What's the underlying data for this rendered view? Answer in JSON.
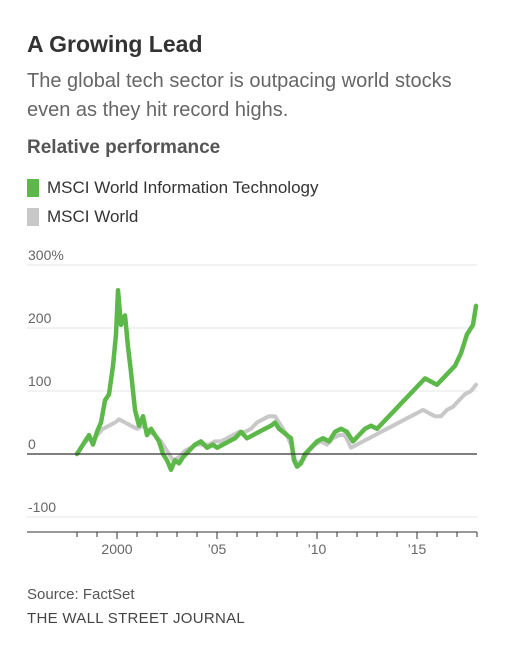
{
  "header": {
    "title": "A Growing Lead",
    "subtitle": "The global tech sector is outpacing world stocks even as they hit record highs.",
    "section_label": "Relative performance"
  },
  "footer": {
    "source": "Source: FactSet",
    "publisher": "THE WALL STREET JOURNAL"
  },
  "colors": {
    "tech": "#5cb848",
    "world": "#c8c8c8",
    "zero_line": "#333333",
    "grid": "#e6e6e6",
    "axis": "#333333"
  },
  "chart_data": {
    "type": "line",
    "title": "A Growing Lead",
    "subtitle": "The global tech sector is outpacing world stocks even as they hit record highs.",
    "ylabel": "Relative performance",
    "xlabel": "",
    "ylim": [
      -100,
      300
    ],
    "xlim": [
      1998.0,
      2018.0
    ],
    "grid": true,
    "legend_position": "top-left",
    "yticks": [
      {
        "value": 300,
        "label": "300%"
      },
      {
        "value": 200,
        "label": "200"
      },
      {
        "value": 100,
        "label": "100"
      },
      {
        "value": 0,
        "label": "0"
      },
      {
        "value": -100,
        "label": "-100"
      }
    ],
    "xticks": [
      {
        "value": 2000,
        "label": "2000"
      },
      {
        "value": 2005,
        "label": "’05"
      },
      {
        "value": 2010,
        "label": "’10"
      },
      {
        "value": 2015,
        "label": "’15"
      }
    ],
    "series": [
      {
        "name": "MSCI World Information Technology",
        "color": "#5cb848",
        "points": [
          [
            1998.0,
            0
          ],
          [
            1998.3,
            15
          ],
          [
            1998.6,
            30
          ],
          [
            1998.8,
            15
          ],
          [
            1999.0,
            35
          ],
          [
            1999.2,
            50
          ],
          [
            1999.4,
            85
          ],
          [
            1999.6,
            95
          ],
          [
            1999.8,
            140
          ],
          [
            1999.95,
            190
          ],
          [
            2000.05,
            260
          ],
          [
            2000.2,
            205
          ],
          [
            2000.4,
            220
          ],
          [
            2000.55,
            170
          ],
          [
            2000.7,
            130
          ],
          [
            2000.9,
            70
          ],
          [
            2001.1,
            45
          ],
          [
            2001.3,
            60
          ],
          [
            2001.5,
            30
          ],
          [
            2001.7,
            40
          ],
          [
            2001.9,
            30
          ],
          [
            2002.1,
            20
          ],
          [
            2002.3,
            0
          ],
          [
            2002.5,
            -10
          ],
          [
            2002.7,
            -25
          ],
          [
            2002.9,
            -10
          ],
          [
            2003.1,
            -15
          ],
          [
            2003.3,
            -5
          ],
          [
            2003.6,
            5
          ],
          [
            2003.9,
            15
          ],
          [
            2004.2,
            20
          ],
          [
            2004.5,
            10
          ],
          [
            2004.8,
            15
          ],
          [
            2005.0,
            10
          ],
          [
            2005.3,
            15
          ],
          [
            2005.6,
            20
          ],
          [
            2005.9,
            25
          ],
          [
            2006.2,
            35
          ],
          [
            2006.5,
            25
          ],
          [
            2006.8,
            30
          ],
          [
            2007.1,
            35
          ],
          [
            2007.4,
            40
          ],
          [
            2007.7,
            45
          ],
          [
            2007.9,
            50
          ],
          [
            2008.1,
            40
          ],
          [
            2008.3,
            35
          ],
          [
            2008.5,
            30
          ],
          [
            2008.7,
            25
          ],
          [
            2008.85,
            -10
          ],
          [
            2009.0,
            -20
          ],
          [
            2009.2,
            -15
          ],
          [
            2009.4,
            0
          ],
          [
            2009.7,
            10
          ],
          [
            2010.0,
            20
          ],
          [
            2010.3,
            25
          ],
          [
            2010.6,
            20
          ],
          [
            2010.9,
            35
          ],
          [
            2011.2,
            40
          ],
          [
            2011.5,
            35
          ],
          [
            2011.8,
            20
          ],
          [
            2012.1,
            30
          ],
          [
            2012.4,
            40
          ],
          [
            2012.7,
            45
          ],
          [
            2013.0,
            40
          ],
          [
            2013.3,
            50
          ],
          [
            2013.6,
            60
          ],
          [
            2013.9,
            70
          ],
          [
            2014.2,
            80
          ],
          [
            2014.5,
            90
          ],
          [
            2014.8,
            100
          ],
          [
            2015.1,
            110
          ],
          [
            2015.4,
            120
          ],
          [
            2015.7,
            115
          ],
          [
            2016.0,
            110
          ],
          [
            2016.3,
            120
          ],
          [
            2016.6,
            130
          ],
          [
            2016.9,
            140
          ],
          [
            2017.2,
            160
          ],
          [
            2017.5,
            190
          ],
          [
            2017.8,
            205
          ],
          [
            2017.95,
            235
          ]
        ]
      },
      {
        "name": "MSCI World",
        "color": "#c8c8c8",
        "points": [
          [
            1998.0,
            0
          ],
          [
            1998.3,
            15
          ],
          [
            1998.6,
            25
          ],
          [
            1998.8,
            20
          ],
          [
            1999.0,
            30
          ],
          [
            1999.3,
            40
          ],
          [
            1999.6,
            45
          ],
          [
            1999.9,
            50
          ],
          [
            2000.1,
            55
          ],
          [
            2000.4,
            50
          ],
          [
            2000.7,
            45
          ],
          [
            2001.0,
            40
          ],
          [
            2001.3,
            45
          ],
          [
            2001.6,
            35
          ],
          [
            2001.9,
            30
          ],
          [
            2002.2,
            20
          ],
          [
            2002.5,
            5
          ],
          [
            2002.8,
            -10
          ],
          [
            2003.1,
            -5
          ],
          [
            2003.4,
            5
          ],
          [
            2003.7,
            10
          ],
          [
            2004.0,
            15
          ],
          [
            2004.3,
            15
          ],
          [
            2004.6,
            15
          ],
          [
            2004.9,
            20
          ],
          [
            2005.2,
            20
          ],
          [
            2005.5,
            25
          ],
          [
            2005.8,
            30
          ],
          [
            2006.1,
            35
          ],
          [
            2006.4,
            35
          ],
          [
            2006.7,
            40
          ],
          [
            2007.0,
            50
          ],
          [
            2007.3,
            55
          ],
          [
            2007.6,
            60
          ],
          [
            2007.9,
            60
          ],
          [
            2008.2,
            45
          ],
          [
            2008.5,
            30
          ],
          [
            2008.7,
            15
          ],
          [
            2008.85,
            -5
          ],
          [
            2009.0,
            -15
          ],
          [
            2009.3,
            -10
          ],
          [
            2009.6,
            5
          ],
          [
            2009.9,
            15
          ],
          [
            2010.2,
            20
          ],
          [
            2010.5,
            15
          ],
          [
            2010.8,
            25
          ],
          [
            2011.1,
            30
          ],
          [
            2011.4,
            30
          ],
          [
            2011.7,
            10
          ],
          [
            2012.0,
            15
          ],
          [
            2012.3,
            20
          ],
          [
            2012.6,
            25
          ],
          [
            2012.9,
            30
          ],
          [
            2013.2,
            35
          ],
          [
            2013.5,
            40
          ],
          [
            2013.8,
            45
          ],
          [
            2014.1,
            50
          ],
          [
            2014.4,
            55
          ],
          [
            2014.7,
            60
          ],
          [
            2015.0,
            65
          ],
          [
            2015.3,
            70
          ],
          [
            2015.6,
            65
          ],
          [
            2015.9,
            60
          ],
          [
            2016.2,
            60
          ],
          [
            2016.5,
            70
          ],
          [
            2016.8,
            75
          ],
          [
            2017.1,
            85
          ],
          [
            2017.4,
            95
          ],
          [
            2017.7,
            100
          ],
          [
            2017.95,
            110
          ]
        ]
      }
    ]
  }
}
